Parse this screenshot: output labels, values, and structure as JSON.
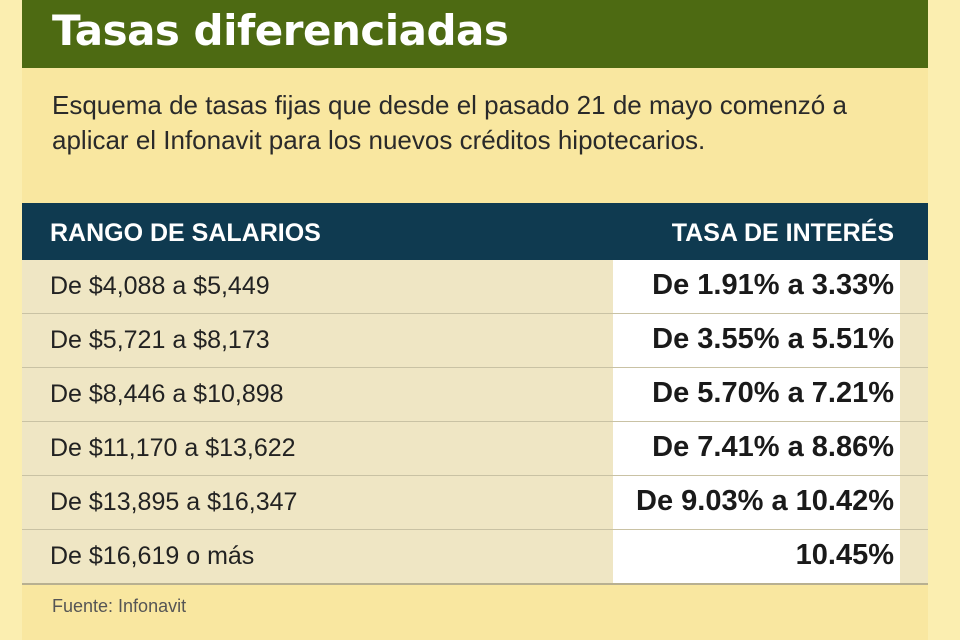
{
  "title": "Tasas diferenciadas",
  "subtitle": "Esquema de tasas fijas que desde el pasado 21 de mayo comenzó a aplicar el Infonavit para los nuevos créditos hipotecarios.",
  "table": {
    "header_range": "RANGO DE SALARIOS",
    "header_rate": "TASA DE INTERÉS",
    "rows": [
      {
        "range": "De $4,088 a $5,449",
        "rate": "De 1.91% a 3.33%"
      },
      {
        "range": "De $5,721 a $8,173",
        "rate": "De 3.55% a 5.51%"
      },
      {
        "range": "De $8,446 a $10,898",
        "rate": "De 5.70% a 7.21%"
      },
      {
        "range": "De $11,170 a $13,622",
        "rate": "De 7.41% a 8.86%"
      },
      {
        "range": "De $13,895 a $16,347",
        "rate": "De 9.03% a 10.42%"
      },
      {
        "range": "De $16,619 o más",
        "rate": "10.45%"
      }
    ]
  },
  "source": "Fuente: Infonavit",
  "colors": {
    "title_bar": "#4d6a12",
    "header_bar": "#0f3a50",
    "background": "#f9e7a0"
  }
}
